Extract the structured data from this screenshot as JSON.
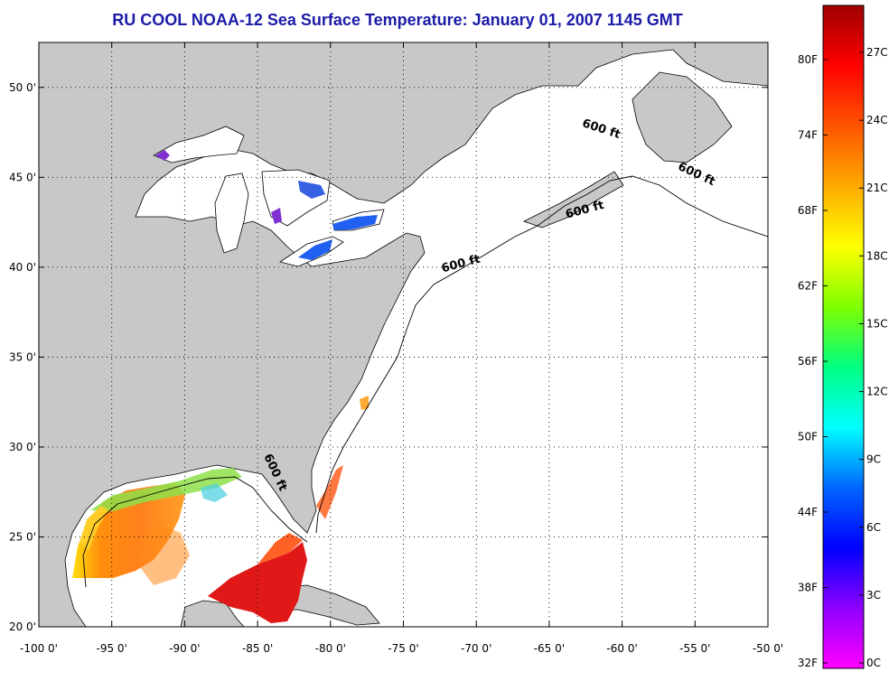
{
  "title": "RU COOL  NOAA-12  Sea Surface Temperature:  January 01, 2007 1145 GMT",
  "colors": {
    "land": "#c8c8c8",
    "ocean": "#ffffff",
    "grid": "#000000",
    "title": "#1c1ca8"
  },
  "map": {
    "lon_range": [
      -100,
      -50
    ],
    "lat_range": [
      20,
      52.5
    ],
    "lat_ticks": [
      {
        "value": 50,
        "label": "50 0'"
      },
      {
        "value": 45,
        "label": "45 0'"
      },
      {
        "value": 40,
        "label": "40 0'"
      },
      {
        "value": 35,
        "label": "35 0'"
      },
      {
        "value": 30,
        "label": "30 0'"
      },
      {
        "value": 25,
        "label": "25 0'"
      },
      {
        "value": 20,
        "label": "20 0'"
      }
    ],
    "lon_ticks": [
      {
        "value": -100,
        "label": "-100 0'"
      },
      {
        "value": -95,
        "label": "-95 0'"
      },
      {
        "value": -90,
        "label": "-90 0'"
      },
      {
        "value": -85,
        "label": "-85 0'"
      },
      {
        "value": -80,
        "label": "-80 0'"
      },
      {
        "value": -75,
        "label": "-75 0'"
      },
      {
        "value": -70,
        "label": "-70 0'"
      },
      {
        "value": -65,
        "label": "-65 0'"
      },
      {
        "value": -60,
        "label": "-60 0'"
      },
      {
        "value": -55,
        "label": "-55 0'"
      },
      {
        "value": -50,
        "label": "-50 0'"
      }
    ],
    "contour_labels": [
      {
        "text": "600 ft",
        "lon": -61.5,
        "lat": 47.5,
        "rot": 18
      },
      {
        "text": "600 ft",
        "lon": -55.0,
        "lat": 45.0,
        "rot": 25
      },
      {
        "text": "600 ft",
        "lon": -62.5,
        "lat": 43.0,
        "rot": -15
      },
      {
        "text": "600 ft",
        "lon": -71.0,
        "lat": 40.0,
        "rot": -15
      },
      {
        "text": "600 ft",
        "lon": -84.0,
        "lat": 28.5,
        "rot": 65
      }
    ]
  },
  "colorbar": {
    "fahrenheit_labels": [
      "80F",
      "74F",
      "68F",
      "62F",
      "56F",
      "50F",
      "44F",
      "38F",
      "32F"
    ],
    "celsius_labels": [
      "27C",
      "24C",
      "21C",
      "18C",
      "15C",
      "12C",
      "9C",
      "6C",
      "3C",
      "0C"
    ],
    "stops": [
      "#ff00ff",
      "#8f00ff",
      "#0000ff",
      "#0066ff",
      "#00ffff",
      "#00ff80",
      "#7fff00",
      "#ffff00",
      "#ffaa00",
      "#ff5500",
      "#ff0000",
      "#a00000"
    ]
  }
}
